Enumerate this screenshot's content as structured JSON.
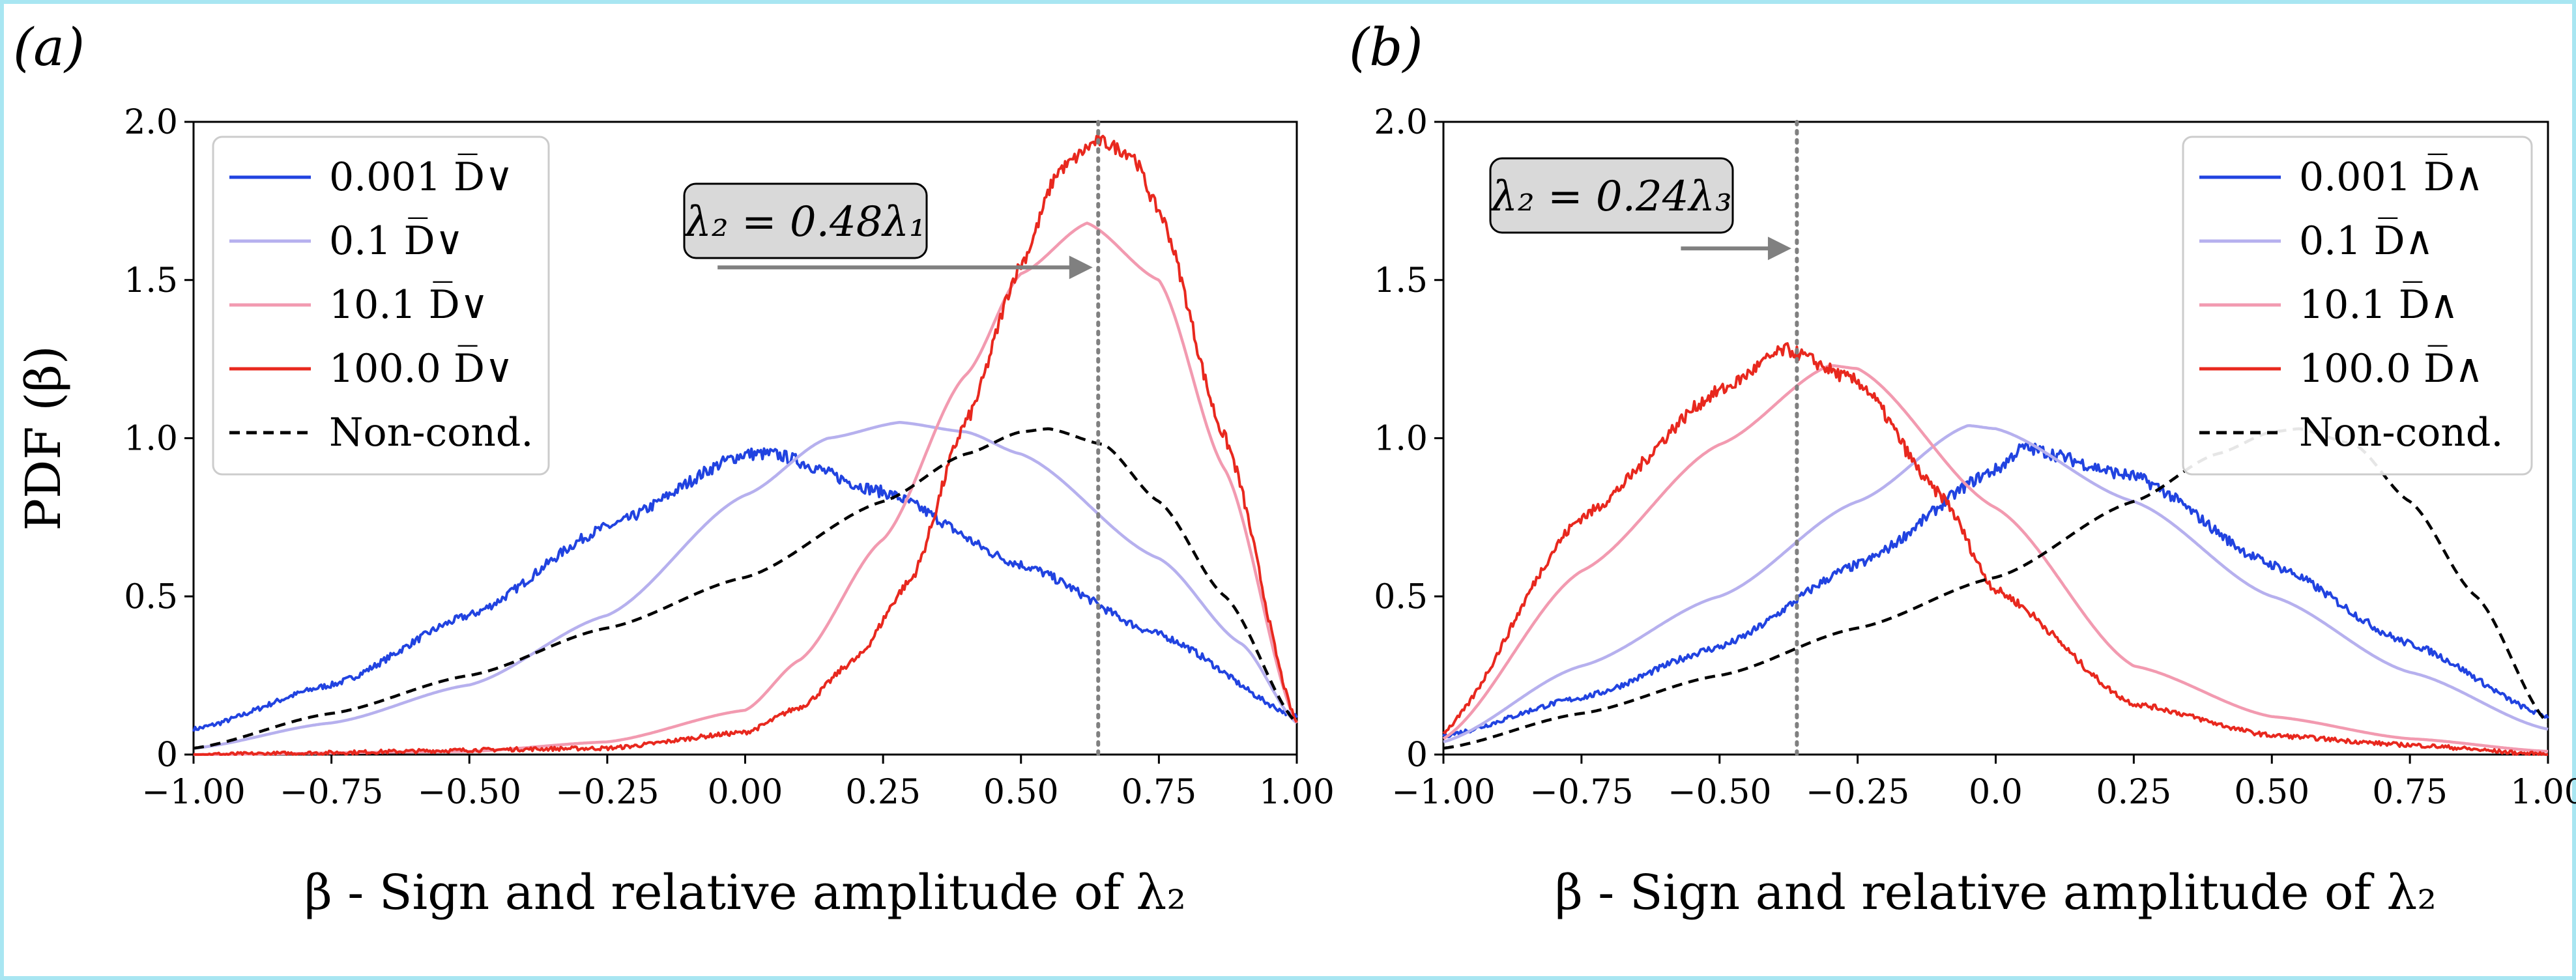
{
  "colors": {
    "frame_border": "#a8e6f2",
    "series_dark_blue": "#2143e0",
    "series_light_blue": "#b6b0ee",
    "series_pink": "#f29ab0",
    "series_red": "#e8281e",
    "non_cond": "#000000",
    "marker_line": "#808080",
    "annotation_box": "#d9d9d9"
  },
  "chart_data": [
    {
      "type": "line",
      "panel_label": "(a)",
      "xlabel": "β - Sign and relative amplitude of λ₂",
      "ylabel": "PDF (β)",
      "xlim": [
        -1.0,
        1.0
      ],
      "ylim": [
        0,
        2.0
      ],
      "x_ticks": [
        "−1.00",
        "−0.75",
        "−0.50",
        "−0.25",
        "0.00",
        "0.25",
        "0.50",
        "0.75",
        "1.00"
      ],
      "y_ticks": [
        "0",
        "0.5",
        "1.0",
        "1.5",
        "2.0"
      ],
      "legend_position": "top-left",
      "vline_x": 0.64,
      "annotation": {
        "text": "λ₂ = 0.48λ₁",
        "arrow_from_x": -0.05,
        "arrow_to_x": 0.63,
        "arrow_y": 1.54
      },
      "series": [
        {
          "name": "0.001 D̅∨",
          "color": "#2143e0",
          "noisy": true,
          "x": [
            -1.0,
            -0.75,
            -0.5,
            -0.25,
            0.0,
            0.05,
            0.25,
            0.5,
            0.75,
            1.0
          ],
          "y": [
            0.08,
            0.22,
            0.44,
            0.72,
            0.95,
            0.95,
            0.83,
            0.6,
            0.38,
            0.12
          ]
        },
        {
          "name": "0.1 D̅∨",
          "color": "#b6b0ee",
          "noisy": false,
          "x": [
            -1.0,
            -0.75,
            -0.5,
            -0.25,
            0.0,
            0.15,
            0.28,
            0.4,
            0.5,
            0.75,
            0.9,
            1.0
          ],
          "y": [
            0.02,
            0.1,
            0.22,
            0.44,
            0.82,
            1.0,
            1.05,
            1.02,
            0.95,
            0.62,
            0.35,
            0.1
          ]
        },
        {
          "name": "10.1 D̅∨",
          "color": "#f29ab0",
          "noisy": false,
          "x": [
            -1.0,
            -0.5,
            -0.25,
            0.0,
            0.1,
            0.25,
            0.4,
            0.5,
            0.62,
            0.75,
            0.87,
            1.0
          ],
          "y": [
            0.0,
            0.01,
            0.04,
            0.14,
            0.3,
            0.68,
            1.2,
            1.52,
            1.68,
            1.5,
            0.9,
            0.1
          ]
        },
        {
          "name": "100.0 D̅∨",
          "color": "#e8281e",
          "noisy": true,
          "x": [
            -1.0,
            -0.25,
            0.0,
            0.1,
            0.2,
            0.3,
            0.4,
            0.5,
            0.57,
            0.64,
            0.7,
            0.75,
            0.87,
            1.0
          ],
          "y": [
            0.0,
            0.02,
            0.07,
            0.15,
            0.3,
            0.55,
            1.05,
            1.55,
            1.85,
            1.94,
            1.9,
            1.72,
            1.0,
            0.1
          ]
        },
        {
          "name": "Non-cond.",
          "color": "#000000",
          "dashed": true,
          "noisy": false,
          "x": [
            -1.0,
            -0.75,
            -0.5,
            -0.25,
            0.0,
            0.25,
            0.4,
            0.5,
            0.55,
            0.65,
            0.75,
            0.87,
            1.0
          ],
          "y": [
            0.02,
            0.13,
            0.25,
            0.4,
            0.56,
            0.8,
            0.95,
            1.02,
            1.03,
            0.98,
            0.8,
            0.5,
            0.1
          ]
        }
      ]
    },
    {
      "type": "line",
      "panel_label": "(b)",
      "xlabel": "β - Sign and relative amplitude of λ₂",
      "ylabel": "",
      "xlim": [
        -1.0,
        1.0
      ],
      "ylim": [
        0,
        2.0
      ],
      "x_ticks": [
        "−1.00",
        "−0.75",
        "−0.50",
        "−0.25",
        "0.0",
        "0.25",
        "0.50",
        "0.75",
        "1.00"
      ],
      "y_ticks": [
        "0",
        "0.5",
        "1.0",
        "1.5",
        "2.0"
      ],
      "legend_position": "top-right",
      "vline_x": -0.36,
      "annotation": {
        "text": "λ₂ = 0.24λ₃",
        "arrow_from_x": -0.57,
        "arrow_to_x": -0.37,
        "arrow_y": 1.6
      },
      "series": [
        {
          "name": "0.001 D̅∧",
          "color": "#2143e0",
          "noisy": true,
          "x": [
            -1.0,
            -0.75,
            -0.5,
            -0.25,
            0.0,
            0.05,
            0.25,
            0.5,
            0.75,
            1.0
          ],
          "y": [
            0.06,
            0.18,
            0.34,
            0.6,
            0.9,
            0.97,
            0.88,
            0.6,
            0.35,
            0.12
          ]
        },
        {
          "name": "0.1 D̅∧",
          "color": "#b6b0ee",
          "noisy": false,
          "x": [
            -1.0,
            -0.75,
            -0.5,
            -0.25,
            -0.05,
            0.0,
            0.25,
            0.5,
            0.75,
            1.0
          ],
          "y": [
            0.04,
            0.28,
            0.5,
            0.8,
            1.04,
            1.03,
            0.8,
            0.5,
            0.26,
            0.08
          ]
        },
        {
          "name": "10.1 D̅∧",
          "color": "#f29ab0",
          "noisy": false,
          "x": [
            -1.0,
            -0.75,
            -0.5,
            -0.3,
            -0.25,
            0.0,
            0.25,
            0.5,
            0.75,
            1.0
          ],
          "y": [
            0.05,
            0.58,
            0.98,
            1.23,
            1.22,
            0.78,
            0.28,
            0.12,
            0.05,
            0.01
          ]
        },
        {
          "name": "100.0 D̅∧",
          "color": "#e8281e",
          "noisy": true,
          "x": [
            -1.0,
            -0.75,
            -0.5,
            -0.38,
            -0.25,
            -0.1,
            0.0,
            0.25,
            0.5,
            0.75,
            1.0
          ],
          "y": [
            0.07,
            0.75,
            1.15,
            1.28,
            1.18,
            0.82,
            0.52,
            0.16,
            0.06,
            0.03,
            0.0
          ]
        },
        {
          "name": "Non-cond.",
          "color": "#000000",
          "dashed": true,
          "noisy": false,
          "x": [
            -1.0,
            -0.75,
            -0.5,
            -0.25,
            0.0,
            0.25,
            0.4,
            0.5,
            0.55,
            0.65,
            0.75,
            0.87,
            1.0
          ],
          "y": [
            0.02,
            0.13,
            0.25,
            0.4,
            0.56,
            0.8,
            0.95,
            1.02,
            1.03,
            0.98,
            0.8,
            0.5,
            0.1
          ]
        }
      ]
    }
  ]
}
